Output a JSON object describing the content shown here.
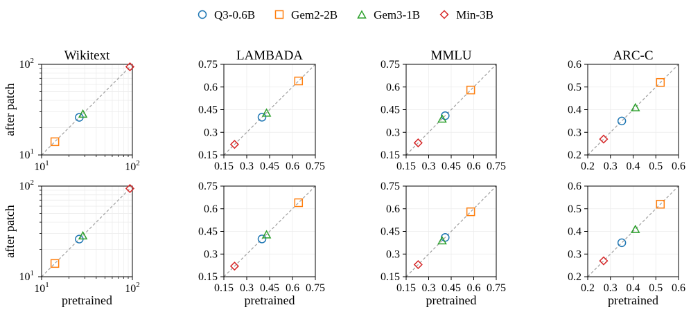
{
  "chart_data": [
    {
      "type": "scatter",
      "title": "Wikitext",
      "xlabel": "",
      "ylabel": "after patch",
      "xscale": "log",
      "yscale": "log",
      "xlim": [
        10,
        100
      ],
      "ylim": [
        10,
        100
      ],
      "xticks": [
        "10^1",
        "10^2"
      ],
      "yticks": [
        "10^1",
        "10^2"
      ],
      "grid": true,
      "diagonal": true,
      "series": [
        {
          "name": "Q3-0.6B",
          "marker": "circle",
          "color": "#1f77b4",
          "points": [
            {
              "x": 26.0,
              "y": 26.0
            }
          ]
        },
        {
          "name": "Gem2-2B",
          "marker": "square",
          "color": "#ff7f0e",
          "points": [
            {
              "x": 14.0,
              "y": 14.0
            }
          ]
        },
        {
          "name": "Gem3-1B",
          "marker": "triangle",
          "color": "#2ca02c",
          "points": [
            {
              "x": 28.5,
              "y": 28.5
            }
          ]
        },
        {
          "name": "Min-3B",
          "marker": "diamond",
          "color": "#d62728",
          "points": [
            {
              "x": 94.0,
              "y": 94.0
            }
          ]
        }
      ]
    },
    {
      "type": "scatter",
      "title": "LAMBADA",
      "xlabel": "",
      "ylabel": "",
      "xscale": "linear",
      "yscale": "linear",
      "xlim": [
        0.15,
        0.75
      ],
      "ylim": [
        0.15,
        0.75
      ],
      "xticks": [
        "0.15",
        "0.3",
        "0.45",
        "0.6",
        "0.75"
      ],
      "yticks": [
        "0.15",
        "0.3",
        "0.45",
        "0.6",
        "0.75"
      ],
      "grid": true,
      "diagonal": true,
      "series": [
        {
          "name": "Q3-0.6B",
          "marker": "circle",
          "color": "#1f77b4",
          "points": [
            {
              "x": 0.4,
              "y": 0.4
            }
          ]
        },
        {
          "name": "Gem2-2B",
          "marker": "square",
          "color": "#ff7f0e",
          "points": [
            {
              "x": 0.64,
              "y": 0.64
            }
          ]
        },
        {
          "name": "Gem3-1B",
          "marker": "triangle",
          "color": "#2ca02c",
          "points": [
            {
              "x": 0.43,
              "y": 0.43
            }
          ]
        },
        {
          "name": "Min-3B",
          "marker": "diamond",
          "color": "#d62728",
          "points": [
            {
              "x": 0.22,
              "y": 0.22
            }
          ]
        }
      ]
    },
    {
      "type": "scatter",
      "title": "MMLU",
      "xlabel": "",
      "ylabel": "",
      "xscale": "linear",
      "yscale": "linear",
      "xlim": [
        0.15,
        0.75
      ],
      "ylim": [
        0.15,
        0.75
      ],
      "xticks": [
        "0.15",
        "0.3",
        "0.45",
        "0.6",
        "0.75"
      ],
      "yticks": [
        "0.15",
        "0.3",
        "0.45",
        "0.6",
        "0.75"
      ],
      "grid": true,
      "diagonal": true,
      "series": [
        {
          "name": "Q3-0.6B",
          "marker": "circle",
          "color": "#1f77b4",
          "points": [
            {
              "x": 0.41,
              "y": 0.41
            }
          ]
        },
        {
          "name": "Gem2-2B",
          "marker": "square",
          "color": "#ff7f0e",
          "points": [
            {
              "x": 0.58,
              "y": 0.58
            }
          ]
        },
        {
          "name": "Gem3-1B",
          "marker": "triangle",
          "color": "#2ca02c",
          "points": [
            {
              "x": 0.39,
              "y": 0.39
            }
          ]
        },
        {
          "name": "Min-3B",
          "marker": "diamond",
          "color": "#d62728",
          "points": [
            {
              "x": 0.23,
              "y": 0.23
            }
          ]
        }
      ]
    },
    {
      "type": "scatter",
      "title": "ARC-C",
      "xlabel": "",
      "ylabel": "",
      "xscale": "linear",
      "yscale": "linear",
      "xlim": [
        0.2,
        0.6
      ],
      "ylim": [
        0.2,
        0.6
      ],
      "xticks": [
        "0.2",
        "0.3",
        "0.4",
        "0.5",
        "0.6"
      ],
      "yticks": [
        "0.2",
        "0.3",
        "0.4",
        "0.5",
        "0.6"
      ],
      "grid": true,
      "diagonal": true,
      "series": [
        {
          "name": "Q3-0.6B",
          "marker": "circle",
          "color": "#1f77b4",
          "points": [
            {
              "x": 0.35,
              "y": 0.35
            }
          ]
        },
        {
          "name": "Gem2-2B",
          "marker": "square",
          "color": "#ff7f0e",
          "points": [
            {
              "x": 0.52,
              "y": 0.52
            }
          ]
        },
        {
          "name": "Gem3-1B",
          "marker": "triangle",
          "color": "#2ca02c",
          "points": [
            {
              "x": 0.41,
              "y": 0.41
            }
          ]
        },
        {
          "name": "Min-3B",
          "marker": "diamond",
          "color": "#d62728",
          "points": [
            {
              "x": 0.27,
              "y": 0.27
            }
          ]
        }
      ]
    },
    {
      "type": "scatter",
      "title": "",
      "xlabel": "pretrained",
      "ylabel": "after patch",
      "xscale": "log",
      "yscale": "log",
      "xlim": [
        10,
        100
      ],
      "ylim": [
        10,
        100
      ],
      "xticks": [
        "10^1",
        "10^2"
      ],
      "yticks": [
        "10^1",
        "10^2"
      ],
      "grid": true,
      "diagonal": true,
      "series": [
        {
          "name": "Q3-0.6B",
          "marker": "circle",
          "color": "#1f77b4",
          "points": [
            {
              "x": 26.0,
              "y": 26.0
            }
          ]
        },
        {
          "name": "Gem2-2B",
          "marker": "square",
          "color": "#ff7f0e",
          "points": [
            {
              "x": 14.0,
              "y": 14.0
            }
          ]
        },
        {
          "name": "Gem3-1B",
          "marker": "triangle",
          "color": "#2ca02c",
          "points": [
            {
              "x": 28.5,
              "y": 28.5
            }
          ]
        },
        {
          "name": "Min-3B",
          "marker": "diamond",
          "color": "#d62728",
          "points": [
            {
              "x": 94.0,
              "y": 94.0
            }
          ]
        }
      ]
    },
    {
      "type": "scatter",
      "title": "",
      "xlabel": "pretrained",
      "ylabel": "",
      "xscale": "linear",
      "yscale": "linear",
      "xlim": [
        0.15,
        0.75
      ],
      "ylim": [
        0.15,
        0.75
      ],
      "xticks": [
        "0.15",
        "0.3",
        "0.45",
        "0.6",
        "0.75"
      ],
      "yticks": [
        "0.15",
        "0.3",
        "0.45",
        "0.6",
        "0.75"
      ],
      "grid": true,
      "diagonal": true,
      "series": [
        {
          "name": "Q3-0.6B",
          "marker": "circle",
          "color": "#1f77b4",
          "points": [
            {
              "x": 0.4,
              "y": 0.4
            }
          ]
        },
        {
          "name": "Gem2-2B",
          "marker": "square",
          "color": "#ff7f0e",
          "points": [
            {
              "x": 0.64,
              "y": 0.64
            }
          ]
        },
        {
          "name": "Gem3-1B",
          "marker": "triangle",
          "color": "#2ca02c",
          "points": [
            {
              "x": 0.43,
              "y": 0.43
            }
          ]
        },
        {
          "name": "Min-3B",
          "marker": "diamond",
          "color": "#d62728",
          "points": [
            {
              "x": 0.22,
              "y": 0.22
            }
          ]
        }
      ]
    },
    {
      "type": "scatter",
      "title": "",
      "xlabel": "pretrained",
      "ylabel": "",
      "xscale": "linear",
      "yscale": "linear",
      "xlim": [
        0.15,
        0.75
      ],
      "ylim": [
        0.15,
        0.75
      ],
      "xticks": [
        "0.15",
        "0.3",
        "0.45",
        "0.6",
        "0.75"
      ],
      "yticks": [
        "0.15",
        "0.3",
        "0.45",
        "0.6",
        "0.75"
      ],
      "grid": true,
      "diagonal": true,
      "series": [
        {
          "name": "Q3-0.6B",
          "marker": "circle",
          "color": "#1f77b4",
          "points": [
            {
              "x": 0.41,
              "y": 0.41
            }
          ]
        },
        {
          "name": "Gem2-2B",
          "marker": "square",
          "color": "#ff7f0e",
          "points": [
            {
              "x": 0.58,
              "y": 0.58
            }
          ]
        },
        {
          "name": "Gem3-1B",
          "marker": "triangle",
          "color": "#2ca02c",
          "points": [
            {
              "x": 0.39,
              "y": 0.39
            }
          ]
        },
        {
          "name": "Min-3B",
          "marker": "diamond",
          "color": "#d62728",
          "points": [
            {
              "x": 0.23,
              "y": 0.23
            }
          ]
        }
      ]
    },
    {
      "type": "scatter",
      "title": "",
      "xlabel": "pretrained",
      "ylabel": "",
      "xscale": "linear",
      "yscale": "linear",
      "xlim": [
        0.2,
        0.6
      ],
      "ylim": [
        0.2,
        0.6
      ],
      "xticks": [
        "0.2",
        "0.3",
        "0.4",
        "0.5",
        "0.6"
      ],
      "yticks": [
        "0.2",
        "0.3",
        "0.4",
        "0.5",
        "0.6"
      ],
      "grid": true,
      "diagonal": true,
      "series": [
        {
          "name": "Q3-0.6B",
          "marker": "circle",
          "color": "#1f77b4",
          "points": [
            {
              "x": 0.35,
              "y": 0.35
            }
          ]
        },
        {
          "name": "Gem2-2B",
          "marker": "square",
          "color": "#ff7f0e",
          "points": [
            {
              "x": 0.52,
              "y": 0.52
            }
          ]
        },
        {
          "name": "Gem3-1B",
          "marker": "triangle",
          "color": "#2ca02c",
          "points": [
            {
              "x": 0.41,
              "y": 0.41
            }
          ]
        },
        {
          "name": "Min-3B",
          "marker": "diamond",
          "color": "#d62728",
          "points": [
            {
              "x": 0.27,
              "y": 0.27
            }
          ]
        }
      ]
    }
  ],
  "legend": {
    "placement": "top-center",
    "items": [
      {
        "label": "Q3-0.6B",
        "marker": "circle",
        "color": "#1f77b4"
      },
      {
        "label": "Gem2-2B",
        "marker": "square",
        "color": "#ff7f0e"
      },
      {
        "label": "Gem3-1B",
        "marker": "triangle",
        "color": "#2ca02c"
      },
      {
        "label": "Min-3B",
        "marker": "diamond",
        "color": "#d62728"
      }
    ]
  }
}
